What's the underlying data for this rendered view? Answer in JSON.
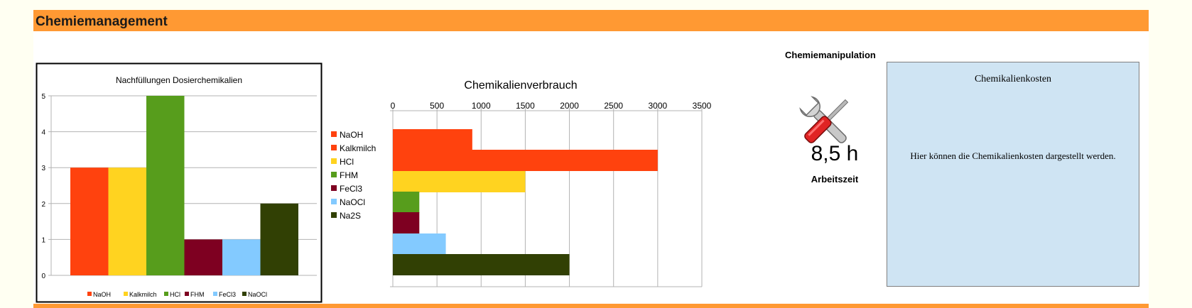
{
  "header": {
    "title": "Chemiemanagement"
  },
  "chart_data": [
    {
      "type": "bar",
      "title": "Nachfüllungen Dosierchemikalien",
      "categories": [
        "NaOH",
        "Kalkmilch",
        "HCl",
        "FHM",
        "FeCl3",
        "NaOCl"
      ],
      "values": [
        3,
        3,
        5,
        1,
        1,
        2
      ],
      "colors": [
        "#ff420e",
        "#ffd320",
        "#579d1c",
        "#7e0021",
        "#83caff",
        "#314004"
      ],
      "yticks": [
        "0",
        "1",
        "2",
        "3",
        "4",
        "5"
      ],
      "ylim": [
        0,
        5
      ],
      "grid": true,
      "legend": "bottom"
    },
    {
      "type": "bar",
      "orientation": "horizontal",
      "title": "Chemikalienverbrauch",
      "categories": [
        "NaOH",
        "Kalkmilch",
        "HCl",
        "FHM",
        "FeCl3",
        "NaOCl",
        "Na2S"
      ],
      "values": [
        900,
        3000,
        1500,
        300,
        300,
        600,
        2000
      ],
      "colors": [
        "#ff420e",
        "#ff420e",
        "#ffd320",
        "#579d1c",
        "#7e0021",
        "#83caff",
        "#314004"
      ],
      "xticks": [
        "0",
        "500",
        "1000",
        "1500",
        "2000",
        "2500",
        "3000",
        "3500"
      ],
      "xlim": [
        0,
        3500
      ],
      "grid": true,
      "legend": "left"
    }
  ],
  "manipulation": {
    "title": "Chemiemanipulation",
    "icon": "tools-icon",
    "hours": "8,5 h",
    "hours_label": "Arbeitszeit"
  },
  "costs": {
    "title": "Chemikalienkosten",
    "text": "Hier können die Chemikalienkosten dargestellt werden."
  }
}
